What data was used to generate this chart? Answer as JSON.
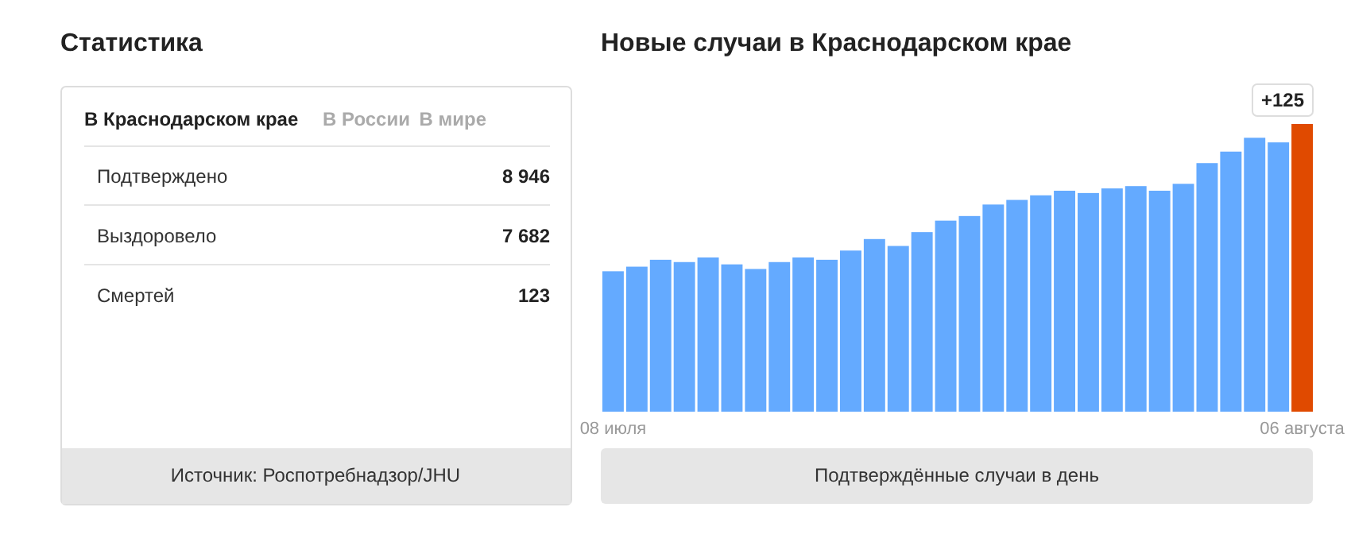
{
  "chart_data": [
    {
      "type": "other",
      "title": "Статистика",
      "categories": [
        "Подтверждено",
        "Выздоровело",
        "Смертей"
      ],
      "value_labels": [
        "8 946",
        "7 682",
        "123"
      ],
      "annotations": [
        "В Краснодарском крае",
        "В России",
        "В мире",
        "Источник: Роспотребнадзор/JHU"
      ]
    },
    {
      "type": "bar",
      "title": "Новые случаи в Краснодарском крае",
      "xlabel": "Подтверждённые случаи в день",
      "categories": [
        "08 июля",
        null,
        null,
        null,
        null,
        null,
        null,
        null,
        null,
        null,
        null,
        null,
        null,
        null,
        null,
        null,
        null,
        null,
        null,
        null,
        null,
        null,
        null,
        null,
        null,
        null,
        null,
        null,
        null,
        "06 августа"
      ],
      "values": [
        61,
        63,
        66,
        65,
        67,
        64,
        62,
        65,
        67,
        66,
        70,
        75,
        72,
        78,
        83,
        85,
        90,
        92,
        94,
        96,
        95,
        97,
        98,
        96,
        99,
        108,
        113,
        119,
        117,
        125
      ],
      "colors": [
        "#64aaff",
        "#64aaff",
        "#64aaff",
        "#64aaff",
        "#64aaff",
        "#64aaff",
        "#64aaff",
        "#64aaff",
        "#64aaff",
        "#64aaff",
        "#64aaff",
        "#64aaff",
        "#64aaff",
        "#64aaff",
        "#64aaff",
        "#64aaff",
        "#64aaff",
        "#64aaff",
        "#64aaff",
        "#64aaff",
        "#64aaff",
        "#64aaff",
        "#64aaff",
        "#64aaff",
        "#64aaff",
        "#64aaff",
        "#64aaff",
        "#64aaff",
        "#64aaff",
        "#e04a00"
      ],
      "value_labels": [
        null,
        null,
        null,
        null,
        null,
        null,
        null,
        null,
        null,
        null,
        null,
        null,
        null,
        null,
        null,
        null,
        null,
        null,
        null,
        null,
        null,
        null,
        null,
        null,
        null,
        null,
        null,
        null,
        null,
        "+125"
      ]
    }
  ]
}
